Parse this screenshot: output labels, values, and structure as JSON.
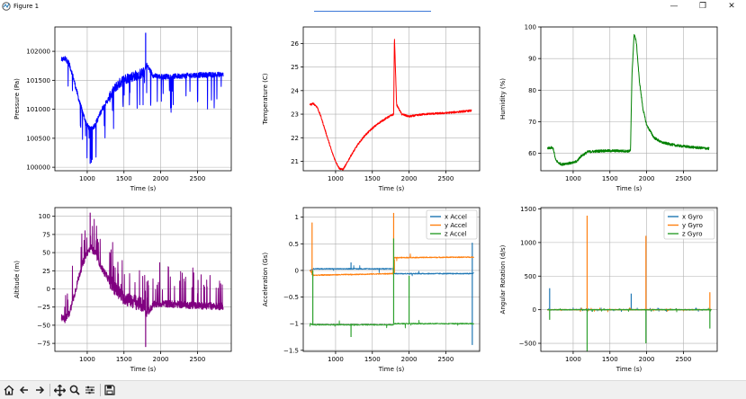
{
  "window": {
    "title": "Figure 1",
    "minimize_glyph": "—",
    "restore_glyph": "❐",
    "close_glyph": "✕"
  },
  "toolbar": {
    "icons": [
      "home-icon",
      "back-arrow-icon",
      "forward-arrow-icon",
      "pan-icon",
      "zoom-icon",
      "configure-subplots-icon",
      "save-icon"
    ]
  },
  "colors": {
    "blue": "#0000ff",
    "red": "#ff0000",
    "green": "#008000",
    "purple": "#800080",
    "c0": "#1f77b4",
    "c1": "#ff7f0e",
    "c2": "#2ca02c"
  },
  "chart_data": [
    {
      "type": "line",
      "xlabel": "Time (s)",
      "ylabel": "Pressure (Pa)",
      "xlim": [
        560,
        2960
      ],
      "ylim": [
        99940,
        102420
      ],
      "xticks": [
        1000,
        1500,
        2000,
        2500
      ],
      "yticks": [
        100000,
        100500,
        101000,
        101500,
        102000
      ],
      "grid": true,
      "color": "#0000ff",
      "series": [
        {
          "x": [
            650,
            700,
            750,
            800,
            850,
            900,
            950,
            1000,
            1050,
            1100,
            1150,
            1200,
            1300,
            1400,
            1500,
            1600,
            1700,
            1780,
            1800,
            1850,
            1900,
            2000,
            2200,
            2500,
            2850
          ],
          "y": [
            101850,
            101880,
            101800,
            101600,
            101350,
            101100,
            100900,
            100720,
            100650,
            100720,
            100850,
            101000,
            101200,
            101400,
            101520,
            101560,
            101600,
            101640,
            101780,
            101680,
            101580,
            101560,
            101570,
            101590,
            101600
          ]
        }
      ]
    },
    {
      "type": "line",
      "xlabel": "Time (s)",
      "ylabel": "Temperature (C)",
      "xlim": [
        560,
        2960
      ],
      "ylim": [
        20.6,
        26.7
      ],
      "xticks": [
        1000,
        1500,
        2000,
        2500
      ],
      "yticks": [
        21,
        22,
        23,
        24,
        25,
        26
      ],
      "grid": true,
      "color": "#ff0000",
      "series": [
        {
          "x": [
            650,
            700,
            750,
            800,
            850,
            900,
            950,
            1000,
            1050,
            1100,
            1150,
            1200,
            1300,
            1400,
            1500,
            1600,
            1700,
            1790,
            1800,
            1830,
            1900,
            2000,
            2200,
            2500,
            2850
          ],
          "y": [
            23.4,
            23.45,
            23.3,
            22.9,
            22.4,
            21.9,
            21.4,
            21.0,
            20.7,
            20.65,
            20.9,
            21.2,
            21.7,
            22.1,
            22.4,
            22.65,
            22.85,
            23.0,
            26.3,
            23.4,
            23.0,
            22.9,
            23.0,
            23.05,
            23.15
          ]
        }
      ]
    },
    {
      "type": "line",
      "xlabel": "Time (s)",
      "ylabel": "Humidity (%)",
      "xlim": [
        560,
        2960
      ],
      "ylim": [
        54.5,
        100
      ],
      "xticks": [
        1000,
        1500,
        2000,
        2500
      ],
      "yticks": [
        60,
        70,
        80,
        90,
        100
      ],
      "grid": true,
      "color": "#008000",
      "series": [
        {
          "x": [
            650,
            700,
            730,
            760,
            800,
            850,
            900,
            1000,
            1050,
            1100,
            1200,
            1400,
            1600,
            1760,
            1780,
            1800,
            1830,
            1860,
            1900,
            1950,
            2000,
            2100,
            2200,
            2400,
            2600,
            2850
          ],
          "y": [
            61.5,
            61.8,
            61.5,
            58,
            57,
            56.5,
            56.8,
            57,
            57.5,
            59,
            60.5,
            60.8,
            60.8,
            60.7,
            60.9,
            85,
            98,
            95,
            83,
            74,
            69,
            65,
            63.5,
            62.5,
            62,
            61.5
          ]
        }
      ]
    },
    {
      "type": "line",
      "xlabel": "Time (s)",
      "ylabel": "Altitude (m)",
      "xlim": [
        560,
        2960
      ],
      "ylim": [
        -86,
        112
      ],
      "xticks": [
        1000,
        1500,
        2000,
        2500
      ],
      "yticks": [
        -75,
        -50,
        -25,
        0,
        25,
        50,
        75,
        100
      ],
      "grid": true,
      "color": "#800080",
      "series": [
        {
          "x": [
            650,
            700,
            750,
            800,
            850,
            900,
            950,
            1000,
            1050,
            1100,
            1150,
            1200,
            1300,
            1400,
            1500,
            1600,
            1700,
            1780,
            1800,
            1850,
            1900,
            2000,
            2200,
            2500,
            2850
          ],
          "y": [
            -40,
            -42,
            -35,
            -18,
            2,
            22,
            38,
            50,
            57,
            50,
            40,
            28,
            12,
            -2,
            -12,
            -16,
            -20,
            -24,
            -36,
            -28,
            -22,
            -20,
            -21,
            -23,
            -24
          ]
        }
      ]
    },
    {
      "type": "line",
      "xlabel": "Time (s)",
      "ylabel": "Acceleration (Gs)",
      "xlim": [
        560,
        2960
      ],
      "ylim": [
        -1.52,
        1.18
      ],
      "xticks": [
        1000,
        1500,
        2000,
        2500
      ],
      "yticks": [
        -1.5,
        -1.0,
        -0.5,
        0.0,
        0.5,
        1.0
      ],
      "grid": true,
      "legend": "top-right",
      "series": [
        {
          "name": "x Accel",
          "color": "#1f77b4",
          "x": [
            650,
            700,
            1780,
            1800,
            2850,
            2880
          ],
          "y": [
            0.0,
            0.03,
            0.03,
            -0.06,
            -0.06,
            -0.05
          ]
        },
        {
          "name": "y Accel",
          "color": "#ff7f0e",
          "x": [
            650,
            700,
            1780,
            1800,
            2850,
            2880
          ],
          "y": [
            0.0,
            -0.09,
            -0.06,
            0.24,
            0.25,
            0.25
          ]
        },
        {
          "name": "z Accel",
          "color": "#2ca02c",
          "x": [
            650,
            700,
            1780,
            1800,
            2850,
            2880
          ],
          "y": [
            -1.0,
            -1.02,
            -1.02,
            -1.0,
            -1.0,
            -1.0
          ]
        }
      ]
    },
    {
      "type": "line",
      "xlabel": "Time (s)",
      "ylabel": "Angular Rotation (d/s)",
      "xlim": [
        560,
        2960
      ],
      "ylim": [
        -620,
        1520
      ],
      "xticks": [
        1000,
        1500,
        2000,
        2500
      ],
      "yticks": [
        -500,
        0,
        500,
        1000,
        1500
      ],
      "grid": true,
      "legend": "top-right",
      "series": [
        {
          "name": "x Gyro",
          "color": "#1f77b4",
          "x": [
            650,
            2880
          ],
          "y": [
            0,
            0
          ]
        },
        {
          "name": "y Gyro",
          "color": "#ff7f0e",
          "x": [
            650,
            2880
          ],
          "y": [
            0,
            0
          ]
        },
        {
          "name": "z Gyro",
          "color": "#2ca02c",
          "x": [
            650,
            2880
          ],
          "y": [
            0,
            0
          ]
        }
      ]
    }
  ]
}
